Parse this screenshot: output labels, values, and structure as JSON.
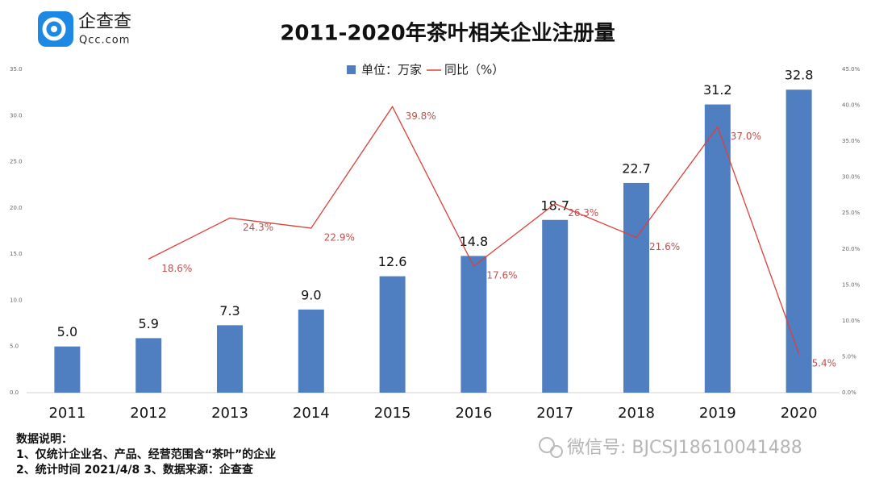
{
  "logo": {
    "name": "企查查",
    "domain": "Qcc.com"
  },
  "chart_data": {
    "type": "bar-line",
    "title": "2011-2020年茶叶相关企业注册量",
    "categories": [
      "2011",
      "2012",
      "2013",
      "2014",
      "2015",
      "2016",
      "2017",
      "2018",
      "2019",
      "2020"
    ],
    "series": [
      {
        "name": "单位：万家",
        "color": "#4f7fc0",
        "axis": "y",
        "kind": "bar",
        "values": [
          5.0,
          5.9,
          7.3,
          9.0,
          12.6,
          14.8,
          18.7,
          22.7,
          31.2,
          32.8
        ],
        "value_labels": [
          "5.0",
          "5.9",
          "7.3",
          "9.0",
          "12.6",
          "14.8",
          "18.7",
          "22.7",
          "31.2",
          "32.8"
        ]
      },
      {
        "name": "同比（%）",
        "color": "#d9413a",
        "axis": "y2",
        "kind": "line",
        "values": [
          null,
          18.6,
          24.3,
          22.9,
          39.8,
          17.6,
          26.3,
          21.6,
          37.0,
          5.4
        ],
        "value_labels": [
          null,
          "18.6%",
          "24.3%",
          "22.9%",
          "39.8%",
          "17.6%",
          "26.3%",
          "21.6%",
          "37.0%",
          "5.4%"
        ]
      }
    ],
    "ylim": [
      0,
      35
    ],
    "yticks": [
      {
        "value": 0,
        "label": "0.0"
      },
      {
        "value": 5,
        "label": "5.0"
      },
      {
        "value": 10,
        "label": "10.0"
      },
      {
        "value": 15,
        "label": "15.0"
      },
      {
        "value": 20,
        "label": "20.0"
      },
      {
        "value": 25,
        "label": "25.0"
      },
      {
        "value": 30,
        "label": "30.0"
      },
      {
        "value": 35,
        "label": "35.0"
      }
    ],
    "y2lim": [
      0,
      45
    ],
    "y2ticks": [
      {
        "value": 0,
        "label": "0.0%"
      },
      {
        "value": 5,
        "label": "5.0%"
      },
      {
        "value": 10,
        "label": "10.0%"
      },
      {
        "value": 15,
        "label": "15.0%"
      },
      {
        "value": 20,
        "label": "20.0%"
      },
      {
        "value": 25,
        "label": "25.0%"
      },
      {
        "value": 30,
        "label": "30.0%"
      },
      {
        "value": 35,
        "label": "35.0%"
      },
      {
        "value": 40,
        "label": "40.0%"
      },
      {
        "value": 45,
        "label": "45.0%"
      }
    ],
    "grid": false,
    "legend": "top"
  },
  "notes": [
    "数据说明：",
    "1、仅统计企业名、产品、经营范围含“茶叶”的企业",
    "2、统计时间 2021/4/8   3、数据来源：企查查"
  ],
  "watermark": "微信号: BJCSJ18610041488"
}
